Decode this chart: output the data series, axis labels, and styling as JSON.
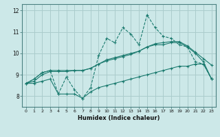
{
  "xlabel": "Humidex (Indice chaleur)",
  "ylabel": "",
  "bg_color": "#cce8e8",
  "grid_color": "#aacccc",
  "line_color": "#1a7a6e",
  "x_values": [
    0,
    1,
    2,
    3,
    4,
    5,
    6,
    7,
    8,
    9,
    10,
    11,
    12,
    13,
    14,
    15,
    16,
    17,
    18,
    19,
    20,
    21,
    22,
    23
  ],
  "series1": [
    8.6,
    8.8,
    9.1,
    9.2,
    8.1,
    8.9,
    8.3,
    7.9,
    8.4,
    9.9,
    10.7,
    10.5,
    11.2,
    10.9,
    10.4,
    11.8,
    11.2,
    10.8,
    10.7,
    10.4,
    10.3,
    9.6,
    9.5,
    8.8
  ],
  "series2": [
    8.6,
    8.8,
    9.1,
    9.2,
    9.2,
    9.2,
    9.2,
    9.2,
    9.3,
    9.5,
    9.7,
    9.8,
    9.9,
    10.0,
    10.1,
    10.3,
    10.4,
    10.4,
    10.5,
    10.5,
    10.3,
    10.0,
    9.6,
    8.8
  ],
  "series3": [
    8.6,
    8.7,
    9.0,
    9.15,
    9.15,
    9.15,
    9.2,
    9.2,
    9.3,
    9.5,
    9.65,
    9.75,
    9.85,
    9.95,
    10.1,
    10.3,
    10.45,
    10.5,
    10.55,
    10.55,
    10.35,
    10.05,
    9.75,
    9.45
  ],
  "series4": [
    8.6,
    8.6,
    8.7,
    8.8,
    8.1,
    8.1,
    8.1,
    7.9,
    8.2,
    8.4,
    8.5,
    8.6,
    8.7,
    8.8,
    8.9,
    9.0,
    9.1,
    9.2,
    9.3,
    9.4,
    9.4,
    9.5,
    9.5,
    8.8
  ],
  "ylim": [
    7.5,
    12.3
  ],
  "xlim": [
    -0.5,
    23.5
  ],
  "yticks": [
    8,
    9,
    10,
    11,
    12
  ],
  "xticks": [
    0,
    1,
    2,
    3,
    4,
    5,
    6,
    7,
    8,
    9,
    10,
    11,
    12,
    13,
    14,
    15,
    16,
    17,
    18,
    19,
    20,
    21,
    22,
    23
  ]
}
